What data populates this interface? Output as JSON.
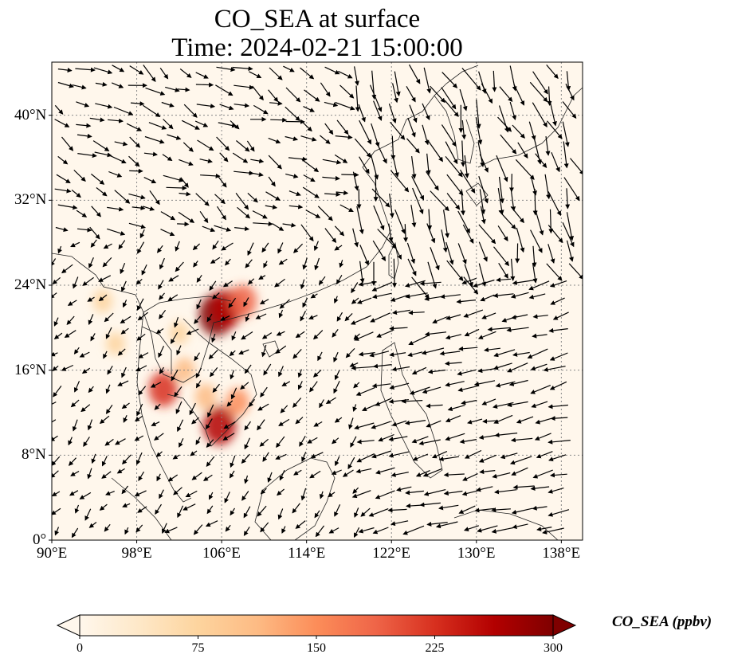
{
  "title": "CO_SEA at surface",
  "subtitle": "Time: 2024-02-21 15:00:00",
  "map": {
    "lon_range": [
      90,
      140
    ],
    "lat_range": [
      0,
      45
    ],
    "lon_ticks": [
      {
        "value": 90,
        "label": "90°E"
      },
      {
        "value": 98,
        "label": "98°E"
      },
      {
        "value": 106,
        "label": "106°E"
      },
      {
        "value": 114,
        "label": "114°E"
      },
      {
        "value": 122,
        "label": "122°E"
      },
      {
        "value": 130,
        "label": "130°E"
      },
      {
        "value": 138,
        "label": "138°E"
      }
    ],
    "lat_ticks": [
      {
        "value": 0,
        "label": "0°"
      },
      {
        "value": 8,
        "label": "8°N"
      },
      {
        "value": 16,
        "label": "16°N"
      },
      {
        "value": 24,
        "label": "24°N"
      },
      {
        "value": 32,
        "label": "32°N"
      },
      {
        "value": 40,
        "label": "40°N"
      }
    ],
    "gridlines": true,
    "colors": {
      "background": "#fff7ec",
      "grid": "#888888",
      "coast": "#222222",
      "arrow": "#000000"
    },
    "co_hotspots": [
      {
        "lon": 105.5,
        "lat": 21.2,
        "value": 300
      },
      {
        "lon": 106.5,
        "lat": 21.8,
        "value": 260
      },
      {
        "lon": 108.0,
        "lat": 22.5,
        "value": 200
      },
      {
        "lon": 105.8,
        "lat": 10.8,
        "value": 270
      },
      {
        "lon": 100.5,
        "lat": 14.2,
        "value": 220
      },
      {
        "lon": 94.8,
        "lat": 22.5,
        "value": 90
      },
      {
        "lon": 96.0,
        "lat": 18.5,
        "value": 85
      },
      {
        "lon": 102.5,
        "lat": 16.0,
        "value": 110
      },
      {
        "lon": 104.5,
        "lat": 13.5,
        "value": 120
      },
      {
        "lon": 107.5,
        "lat": 13.0,
        "value": 140
      },
      {
        "lon": 102.0,
        "lat": 19.5,
        "value": 90
      }
    ]
  },
  "colorbar": {
    "label": "CO_SEA (ppbv)",
    "min": 0,
    "max": 300,
    "ticks": [
      {
        "value": 0,
        "label": "0"
      },
      {
        "value": 75,
        "label": "75"
      },
      {
        "value": 150,
        "label": "150"
      },
      {
        "value": 225,
        "label": "225"
      },
      {
        "value": 300,
        "label": "300"
      }
    ],
    "colors": [
      "#fff7ec",
      "#fee8c8",
      "#fdd49e",
      "#fdbb84",
      "#fc8d59",
      "#ef6548",
      "#d7301f",
      "#b30000",
      "#7f0000"
    ]
  }
}
